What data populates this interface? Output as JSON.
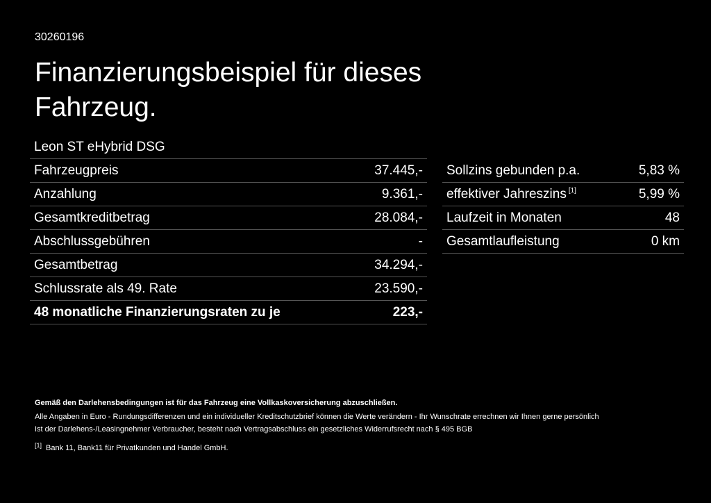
{
  "id": "30260196",
  "title": "Finanzierungsbeispiel für dieses Fahrzeug.",
  "left_table": {
    "header": "Leon ST eHybrid DSG",
    "rows": [
      [
        "Fahrzeugpreis",
        "37.445,-"
      ],
      [
        "Anzahlung",
        "9.361,-"
      ],
      [
        "Gesamtkreditbetrag",
        "28.084,-"
      ],
      [
        "Abschlussgebühren",
        "-"
      ],
      [
        "Gesamtbetrag",
        "34.294,-"
      ],
      [
        "Schlussrate als 49. Rate",
        "23.590,-"
      ],
      [
        "48 monatliche Finanzierungsraten zu je",
        "223,-"
      ]
    ]
  },
  "right_table": {
    "rows": [
      {
        "label": "Sollzins gebunden p.a.",
        "value": "5,83 %"
      },
      {
        "label": "effektiver Jahreszins",
        "note": "[1]",
        "value": "5,99 %"
      },
      {
        "label": "Laufzeit in Monaten",
        "value": "48"
      },
      {
        "label": "Gesamtlaufleistung",
        "value": "0 km"
      }
    ]
  },
  "notes": {
    "bold": "Gemäß den Darlehensbedingungen ist für das Fahrzeug eine Vollkaskoversicherung abzuschließen.",
    "lines": [
      "Alle Angaben in Euro - Rundungsdifferenzen und ein individueller Kreditschutzbrief können die Werte verändern - Ihr Wunschrate errechnen wir Ihnen gerne persönlich",
      "Ist der Darlehens-/Leasingnehmer Verbraucher, besteht nach Vertragsabschluss ein gesetzliches Widerrufsrecht nach § 495 BGB"
    ],
    "footnote": {
      "marker": "[1]",
      "text": "Bank 11, Bank11 für Privatkunden und Handel GmbH."
    }
  }
}
